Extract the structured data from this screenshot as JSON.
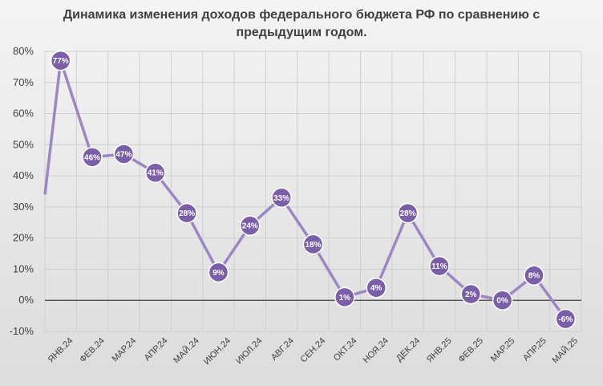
{
  "chart_data": {
    "type": "line",
    "title_line1": "Динамика изменения доходов федерального бюджета РФ по сравнению с",
    "title_line2": "предыдущим годом.",
    "categories": [
      "ЯНВ.24",
      "ФЕВ.24",
      "МАР.24",
      "АПР.24",
      "МАЙ.24",
      "ИЮН.24",
      "ИЮЛ.24",
      "АВГ.24",
      "СЕН.24",
      "ОКТ.24",
      "НОЯ.24",
      "ДЕК.24",
      "ЯНВ.25",
      "ФЕВ.25",
      "МАР.25",
      "АПР.25",
      "МАЙ.25"
    ],
    "values": [
      77,
      46,
      47,
      41,
      28,
      9,
      24,
      33,
      18,
      1,
      4,
      28,
      11,
      2,
      0,
      8,
      -6
    ],
    "data_labels": [
      "77%",
      "46%",
      "47%",
      "41%",
      "28%",
      "9%",
      "24%",
      "33%",
      "18%",
      "1%",
      "4%",
      "28%",
      "11%",
      "2%",
      "0%",
      "8%",
      "-6%"
    ],
    "y_ticks": [
      "-10%",
      "0%",
      "10%",
      "20%",
      "30%",
      "40%",
      "50%",
      "60%",
      "70%",
      "80%"
    ],
    "y_tick_values": [
      -10,
      0,
      10,
      20,
      30,
      40,
      50,
      60,
      70,
      80
    ],
    "ylim": [
      -10,
      80
    ],
    "grid": true,
    "line_color": "#9b87c4",
    "marker_color": "#7b5ea8",
    "marker_stroke": "#ffffff"
  }
}
